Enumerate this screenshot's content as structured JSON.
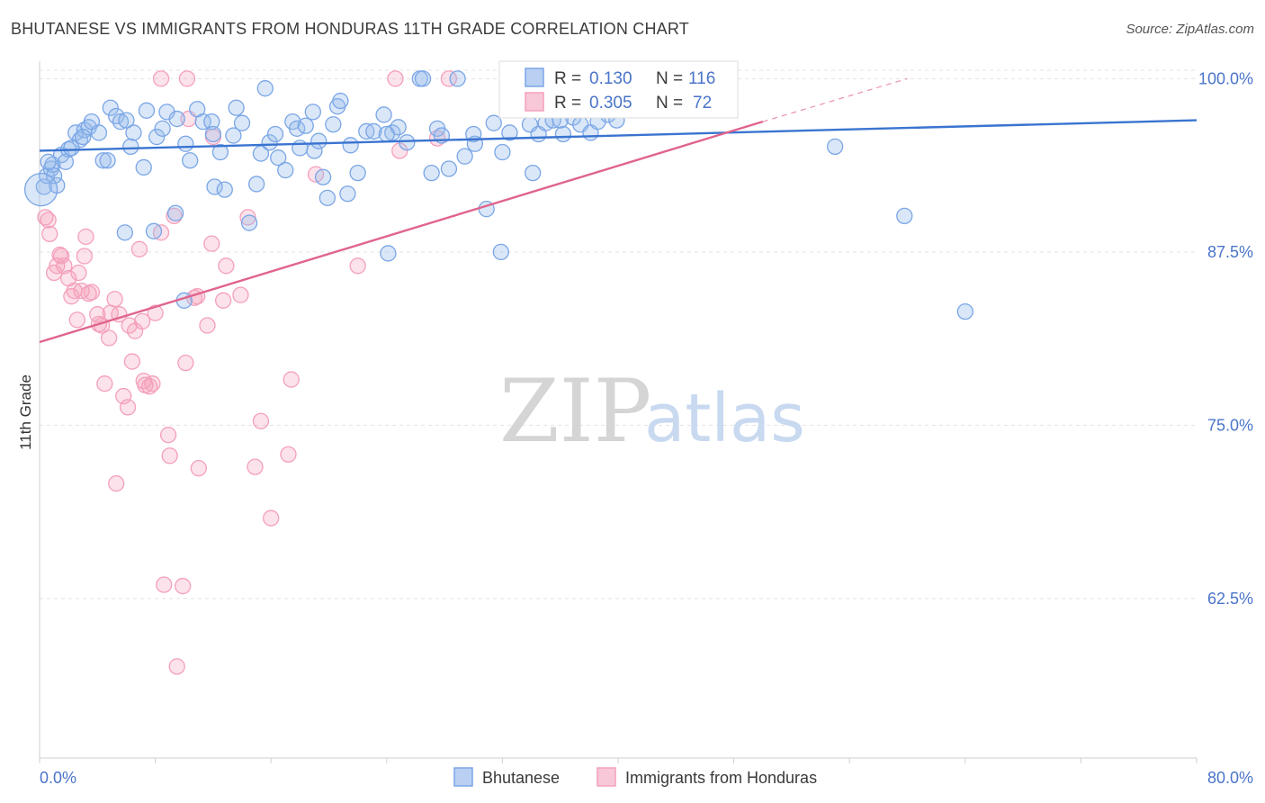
{
  "header": {
    "title": "BHUTANESE VS IMMIGRANTS FROM HONDURAS 11TH GRADE CORRELATION CHART",
    "source": "Source: ZipAtlas.com"
  },
  "watermark": {
    "zip": "ZIP",
    "atlas": "atlas"
  },
  "chart_data": {
    "type": "scatter",
    "title": "BHUTANESE VS IMMIGRANTS FROM HONDURAS 11TH GRADE CORRELATION CHART",
    "xlabel": "",
    "ylabel": "11th Grade",
    "xlim": [
      0,
      80
    ],
    "ylim": [
      51,
      101
    ],
    "x_tick_labels": [
      "0.0%",
      "80.0%"
    ],
    "y_ticks": [
      100,
      87.5,
      75,
      62.5
    ],
    "y_tick_labels": [
      "100.0%",
      "87.5%",
      "75.0%",
      "62.5%"
    ],
    "grid": true,
    "legend_position": "top-center",
    "stats": [
      {
        "r_label": "R =",
        "r": "0.130",
        "n_label": "N =",
        "n": "116"
      },
      {
        "r_label": "R =",
        "r": "0.305",
        "n_label": "N =",
        "n": "72"
      }
    ],
    "series": [
      {
        "name": "Bhutanese",
        "color": "#7aa6e6",
        "line_color": "#3a74d0",
        "trend": {
          "x": [
            0,
            80
          ],
          "y": [
            94.8,
            97.0
          ],
          "dashed_to": null
        },
        "points": [
          [
            0.3,
            92.2
          ],
          [
            0.5,
            93.0
          ],
          [
            0.8,
            93.5
          ],
          [
            1.2,
            92.3
          ],
          [
            0.9,
            93.8
          ],
          [
            1.5,
            94.5
          ],
          [
            1.8,
            94.0
          ],
          [
            2.0,
            94.9
          ],
          [
            2.5,
            96.1
          ],
          [
            2.8,
            95.6
          ],
          [
            3.1,
            96.3
          ],
          [
            3.4,
            96.5
          ],
          [
            3.6,
            96.9
          ],
          [
            4.1,
            96.1
          ],
          [
            4.4,
            94.1
          ],
          [
            4.7,
            94.1
          ],
          [
            4.9,
            97.9
          ],
          [
            5.3,
            97.3
          ],
          [
            5.6,
            96.9
          ],
          [
            6.3,
            95.1
          ],
          [
            6.5,
            96.1
          ],
          [
            7.2,
            93.6
          ],
          [
            7.4,
            97.7
          ],
          [
            8.1,
            95.8
          ],
          [
            8.5,
            96.4
          ],
          [
            8.8,
            97.6
          ],
          [
            9.5,
            97.1
          ],
          [
            10.1,
            95.3
          ],
          [
            10.4,
            94.1
          ],
          [
            10.9,
            97.8
          ],
          [
            11.3,
            96.9
          ],
          [
            11.9,
            96.9
          ],
          [
            12.1,
            92.2
          ],
          [
            12.5,
            94.7
          ],
          [
            12.8,
            92.0
          ],
          [
            13.4,
            95.9
          ],
          [
            13.6,
            97.9
          ],
          [
            14.0,
            96.8
          ],
          [
            14.5,
            89.6
          ],
          [
            15.0,
            92.4
          ],
          [
            15.3,
            94.6
          ],
          [
            15.6,
            99.3
          ],
          [
            15.9,
            95.4
          ],
          [
            16.3,
            96.0
          ],
          [
            16.5,
            94.3
          ],
          [
            17.0,
            93.4
          ],
          [
            17.5,
            96.9
          ],
          [
            17.8,
            96.4
          ],
          [
            18.4,
            96.6
          ],
          [
            18.9,
            97.6
          ],
          [
            19.0,
            94.8
          ],
          [
            19.3,
            95.5
          ],
          [
            19.6,
            92.9
          ],
          [
            19.9,
            91.4
          ],
          [
            20.3,
            96.7
          ],
          [
            20.6,
            98.0
          ],
          [
            20.8,
            98.4
          ],
          [
            21.3,
            91.7
          ],
          [
            21.5,
            95.2
          ],
          [
            22.0,
            93.2
          ],
          [
            22.6,
            96.2
          ],
          [
            23.1,
            96.2
          ],
          [
            23.8,
            97.4
          ],
          [
            24.1,
            87.4
          ],
          [
            24.4,
            96.1
          ],
          [
            24.8,
            96.5
          ],
          [
            25.4,
            95.4
          ],
          [
            26.3,
            100.0
          ],
          [
            26.5,
            100.0
          ],
          [
            27.1,
            93.2
          ],
          [
            27.5,
            96.4
          ],
          [
            27.8,
            95.9
          ],
          [
            28.3,
            93.5
          ],
          [
            28.9,
            100.0
          ],
          [
            29.4,
            94.4
          ],
          [
            30.1,
            95.3
          ],
          [
            30.9,
            90.6
          ],
          [
            31.4,
            96.8
          ],
          [
            31.9,
            87.5
          ],
          [
            32.0,
            94.7
          ],
          [
            32.5,
            96.1
          ],
          [
            33.0,
            98.7
          ],
          [
            33.9,
            96.7
          ],
          [
            34.1,
            93.2
          ],
          [
            34.5,
            96.0
          ],
          [
            35.0,
            96.8
          ],
          [
            35.5,
            97.0
          ],
          [
            36.2,
            96.0
          ],
          [
            36.9,
            97.2
          ],
          [
            37.4,
            96.7
          ],
          [
            38.1,
            96.1
          ],
          [
            38.6,
            96.9
          ],
          [
            39.3,
            97.4
          ],
          [
            39.9,
            97.0
          ],
          [
            40.4,
            98.6
          ],
          [
            41.3,
            99.6
          ],
          [
            42.3,
            98.4
          ],
          [
            43.1,
            100.0
          ],
          [
            44.0,
            97.9
          ],
          [
            5.9,
            88.9
          ],
          [
            7.9,
            89.0
          ],
          [
            9.4,
            90.3
          ],
          [
            10.0,
            84.0
          ],
          [
            55.0,
            95.1
          ],
          [
            59.8,
            90.1
          ],
          [
            64.0,
            83.2
          ],
          [
            1.0,
            93.0
          ],
          [
            3.0,
            95.8
          ],
          [
            6.0,
            97.0
          ],
          [
            12.0,
            96.0
          ],
          [
            18.0,
            95.0
          ],
          [
            24.0,
            96.0
          ],
          [
            30.0,
            96.0
          ],
          [
            36.0,
            97.0
          ],
          [
            0.6,
            94.0
          ],
          [
            2.2,
            95.0
          ]
        ],
        "big_points": [
          [
            0.1,
            92.0
          ]
        ]
      },
      {
        "name": "Immigrants from Honduras",
        "color": "#f4a0bb",
        "line_color": "#e0648c",
        "trend": {
          "x": [
            0,
            50
          ],
          "y": [
            81.0,
            96.9
          ],
          "dashed_to": [
            60,
            100.0
          ]
        },
        "points": [
          [
            0.4,
            90.0
          ],
          [
            0.6,
            89.8
          ],
          [
            0.7,
            88.8
          ],
          [
            1.0,
            86.0
          ],
          [
            1.2,
            86.5
          ],
          [
            1.4,
            87.3
          ],
          [
            1.5,
            87.2
          ],
          [
            1.7,
            86.5
          ],
          [
            2.0,
            85.6
          ],
          [
            2.2,
            84.3
          ],
          [
            2.4,
            84.7
          ],
          [
            2.6,
            82.6
          ],
          [
            2.9,
            84.7
          ],
          [
            3.1,
            87.2
          ],
          [
            3.2,
            88.6
          ],
          [
            3.4,
            84.5
          ],
          [
            3.6,
            84.6
          ],
          [
            4.1,
            82.3
          ],
          [
            4.3,
            82.2
          ],
          [
            4.5,
            78.0
          ],
          [
            4.8,
            81.3
          ],
          [
            4.9,
            83.1
          ],
          [
            5.2,
            84.1
          ],
          [
            5.5,
            83.0
          ],
          [
            5.8,
            77.1
          ],
          [
            6.1,
            76.3
          ],
          [
            6.2,
            82.2
          ],
          [
            6.4,
            79.6
          ],
          [
            6.6,
            81.8
          ],
          [
            6.9,
            87.7
          ],
          [
            7.1,
            82.5
          ],
          [
            7.2,
            78.2
          ],
          [
            7.3,
            77.9
          ],
          [
            7.6,
            77.8
          ],
          [
            7.8,
            78.0
          ],
          [
            8.0,
            83.1
          ],
          [
            8.4,
            88.9
          ],
          [
            8.6,
            63.5
          ],
          [
            8.9,
            74.3
          ],
          [
            9.0,
            72.8
          ],
          [
            9.3,
            90.1
          ],
          [
            9.9,
            63.4
          ],
          [
            10.1,
            79.5
          ],
          [
            10.3,
            97.1
          ],
          [
            10.7,
            84.2
          ],
          [
            10.9,
            84.3
          ],
          [
            11.0,
            71.9
          ],
          [
            11.6,
            82.2
          ],
          [
            11.9,
            88.1
          ],
          [
            12.0,
            95.8
          ],
          [
            12.7,
            84.0
          ],
          [
            12.9,
            86.5
          ],
          [
            13.9,
            84.4
          ],
          [
            14.4,
            90.0
          ],
          [
            14.9,
            72.0
          ],
          [
            15.3,
            75.3
          ],
          [
            16.0,
            68.3
          ],
          [
            17.2,
            72.9
          ],
          [
            17.4,
            78.3
          ],
          [
            19.1,
            93.1
          ],
          [
            22.0,
            86.5
          ],
          [
            24.9,
            94.8
          ],
          [
            27.5,
            95.7
          ],
          [
            28.3,
            100.0
          ],
          [
            8.4,
            100.0
          ],
          [
            10.2,
            100.0
          ],
          [
            24.6,
            100.0
          ],
          [
            42.5,
            100.0
          ],
          [
            9.5,
            57.6
          ],
          [
            5.3,
            70.8
          ],
          [
            2.7,
            86.0
          ],
          [
            4.0,
            83.0
          ]
        ],
        "big_points": []
      }
    ]
  },
  "bottom_legend": [
    {
      "label": "Bhutanese",
      "color": "#b9d0f3",
      "border": "#7aa6e6"
    },
    {
      "label": "Immigrants from Honduras",
      "color": "#f8c8d8",
      "border": "#f4a0bb"
    }
  ]
}
